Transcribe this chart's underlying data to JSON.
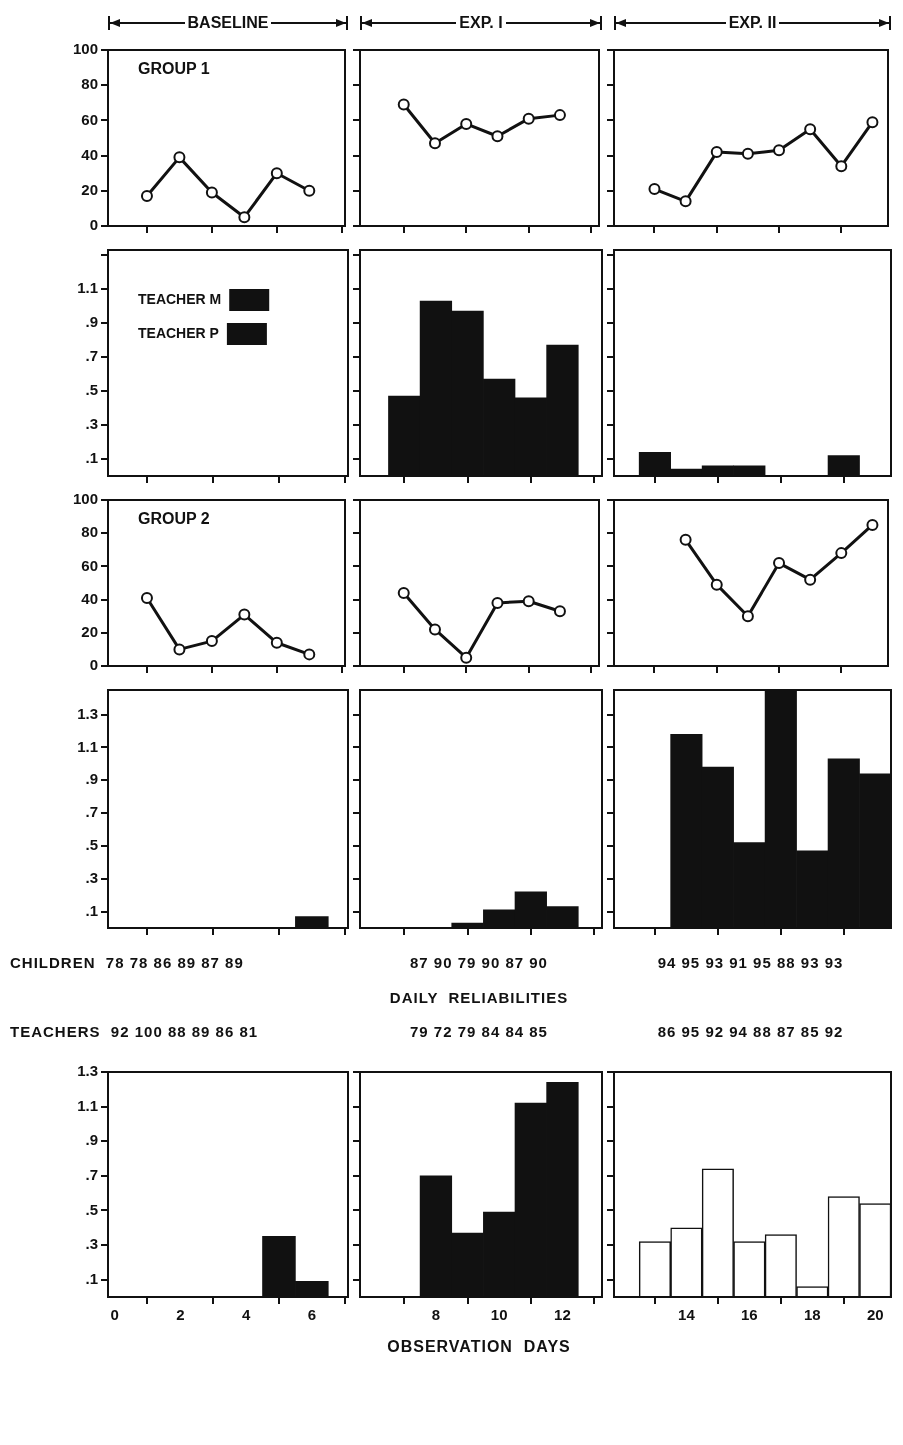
{
  "chart_data": [
    {
      "type": "line",
      "title": "BASELINE",
      "annotations": [
        "GROUP 1"
      ],
      "x": [
        1,
        2,
        3,
        4,
        5,
        6
      ],
      "values": [
        17,
        39,
        19,
        5,
        30,
        20
      ],
      "color": "#111111",
      "marker": "circle",
      "xlim": [
        -0.2,
        7.1
      ],
      "xticks": [
        {
          "value": 0,
          "label": null
        },
        {
          "value": 2,
          "label": null
        },
        {
          "value": 4,
          "label": null
        },
        {
          "value": 6,
          "label": null
        }
      ],
      "ylim": [
        0,
        100
      ],
      "yticks": [
        0,
        20,
        40,
        60,
        80,
        100
      ],
      "tick_labels": "y"
    },
    {
      "type": "line",
      "title": "EXP. I",
      "x": [
        7,
        8,
        9,
        10,
        11,
        12
      ],
      "values": [
        69,
        47,
        58,
        51,
        61,
        63
      ],
      "color": "#111111",
      "marker": "circle",
      "xlim": [
        5.6,
        13.25
      ],
      "xticks": [
        {
          "value": 8,
          "label": null
        },
        {
          "value": 10,
          "label": null
        },
        {
          "value": 12,
          "label": null
        }
      ],
      "ylim": [
        0,
        100
      ],
      "yticks": [
        {
          "value": 0,
          "label": null
        },
        {
          "value": 20,
          "label": null
        },
        {
          "value": 40,
          "label": null
        },
        {
          "value": 60,
          "label": null
        },
        {
          "value": 80,
          "label": null
        },
        {
          "value": 100,
          "label": null
        }
      ],
      "tick_labels": false
    },
    {
      "type": "line",
      "title": "EXP. II",
      "x": [
        13,
        14,
        15,
        16,
        17,
        18,
        19,
        20
      ],
      "values": [
        21,
        14,
        42,
        41,
        43,
        55,
        34,
        59
      ],
      "color": "#111111",
      "marker": "circle",
      "xlim": [
        11.7,
        20.5
      ],
      "xticks": [
        {
          "value": 14,
          "label": null
        },
        {
          "value": 16,
          "label": null
        },
        {
          "value": 18,
          "label": null
        },
        {
          "value": 20,
          "label": null
        }
      ],
      "ylim": [
        0,
        100
      ],
      "yticks": [
        {
          "value": 0,
          "label": null
        },
        {
          "value": 20,
          "label": null
        },
        {
          "value": 40,
          "label": null
        },
        {
          "value": 60,
          "label": null
        },
        {
          "value": 80,
          "label": null
        },
        {
          "value": 100,
          "label": null
        }
      ],
      "tick_labels": false
    },
    {
      "type": "bar",
      "x": [
        1,
        2,
        3,
        4,
        5,
        6
      ],
      "series": [
        {
          "name": "TEACHER M",
          "color": "#111111",
          "values": [
            0,
            0,
            0,
            0,
            0,
            0
          ]
        },
        {
          "name": "TEACHER P",
          "color": "#111111",
          "values": [
            0,
            0,
            0,
            0,
            0,
            0
          ]
        }
      ],
      "legend": "top left",
      "xlim": [
        -0.2,
        7.1
      ],
      "xticks": [
        {
          "value": 0,
          "label": null
        },
        {
          "value": 2,
          "label": null
        },
        {
          "value": 4,
          "label": null
        },
        {
          "value": 6,
          "label": null
        }
      ],
      "ylim": [
        0,
        1.33
      ],
      "yticks": [
        {
          "value": 0.1,
          "label": ".1"
        },
        {
          "value": 0.3,
          "label": ".3"
        },
        {
          "value": 0.5,
          "label": ".5"
        },
        {
          "value": 0.7,
          "label": ".7"
        },
        {
          "value": 0.9,
          "label": ".9"
        },
        {
          "value": 1.1,
          "label": "1.1"
        },
        {
          "value": 1.3,
          "label": null
        }
      ],
      "tick_labels": "y"
    },
    {
      "type": "bar",
      "x": [
        7,
        8,
        9,
        10,
        11,
        12
      ],
      "values": [
        0.47,
        1.03,
        0.97,
        0.57,
        0.46,
        0.77
      ],
      "color": "#111111",
      "xlim": [
        5.6,
        13.25
      ],
      "xticks": [
        {
          "value": 8,
          "label": null
        },
        {
          "value": 10,
          "label": null
        },
        {
          "value": 12,
          "label": null
        }
      ],
      "ylim": [
        0,
        1.33
      ],
      "yticks": [
        {
          "value": 0.1,
          "label": null
        },
        {
          "value": 0.3,
          "label": null
        },
        {
          "value": 0.5,
          "label": null
        },
        {
          "value": 0.7,
          "label": null
        },
        {
          "value": 0.9,
          "label": null
        },
        {
          "value": 1.1,
          "label": null
        },
        {
          "value": 1.3,
          "label": null
        }
      ],
      "tick_labels": false
    },
    {
      "type": "bar",
      "x": [
        13,
        14,
        15,
        16,
        17,
        18,
        19,
        20
      ],
      "values": [
        0.14,
        0.04,
        0.06,
        0.06,
        0,
        0,
        0.12,
        0
      ],
      "color": "#111111",
      "xlim": [
        11.7,
        20.5
      ],
      "xticks": [
        {
          "value": 14,
          "label": null
        },
        {
          "value": 16,
          "label": null
        },
        {
          "value": 18,
          "label": null
        },
        {
          "value": 20,
          "label": null
        }
      ],
      "ylim": [
        0,
        1.33
      ],
      "yticks": [
        {
          "value": 0.1,
          "label": null
        },
        {
          "value": 0.3,
          "label": null
        },
        {
          "value": 0.5,
          "label": null
        },
        {
          "value": 0.7,
          "label": null
        },
        {
          "value": 0.9,
          "label": null
        },
        {
          "value": 1.1,
          "label": null
        },
        {
          "value": 1.3,
          "label": null
        }
      ],
      "tick_labels": false
    },
    {
      "type": "line",
      "annotations": [
        "GROUP 2"
      ],
      "x": [
        1,
        2,
        3,
        4,
        5,
        6
      ],
      "values": [
        41,
        10,
        15,
        31,
        14,
        7
      ],
      "color": "#111111",
      "marker": "circle",
      "xlim": [
        -0.2,
        7.1
      ],
      "xticks": [
        {
          "value": 0,
          "label": null
        },
        {
          "value": 2,
          "label": null
        },
        {
          "value": 4,
          "label": null
        },
        {
          "value": 6,
          "label": null
        }
      ],
      "ylim": [
        0,
        100
      ],
      "yticks": [
        0,
        20,
        40,
        60,
        80,
        100
      ],
      "tick_labels": "y"
    },
    {
      "type": "line",
      "x": [
        7,
        8,
        9,
        10,
        11,
        12
      ],
      "values": [
        44,
        22,
        5,
        38,
        39,
        33
      ],
      "color": "#111111",
      "marker": "circle",
      "xlim": [
        5.6,
        13.25
      ],
      "xticks": [
        {
          "value": 8,
          "label": null
        },
        {
          "value": 10,
          "label": null
        },
        {
          "value": 12,
          "label": null
        }
      ],
      "ylim": [
        0,
        100
      ],
      "yticks": [
        {
          "value": 0,
          "label": null
        },
        {
          "value": 20,
          "label": null
        },
        {
          "value": 40,
          "label": null
        },
        {
          "value": 60,
          "label": null
        },
        {
          "value": 80,
          "label": null
        },
        {
          "value": 100,
          "label": null
        }
      ],
      "tick_labels": false
    },
    {
      "type": "line",
      "x": [
        14,
        15,
        16,
        17,
        18,
        19,
        20
      ],
      "values": [
        76,
        49,
        30,
        62,
        52,
        68,
        85
      ],
      "color": "#111111",
      "marker": "circle",
      "xlim": [
        11.7,
        20.5
      ],
      "xticks": [
        {
          "value": 14,
          "label": null
        },
        {
          "value": 16,
          "label": null
        },
        {
          "value": 18,
          "label": null
        },
        {
          "value": 20,
          "label": null
        }
      ],
      "ylim": [
        0,
        100
      ],
      "yticks": [
        {
          "value": 0,
          "label": null
        },
        {
          "value": 20,
          "label": null
        },
        {
          "value": 40,
          "label": null
        },
        {
          "value": 60,
          "label": null
        },
        {
          "value": 80,
          "label": null
        },
        {
          "value": 100,
          "label": null
        }
      ],
      "tick_labels": false
    },
    {
      "type": "bar",
      "annotations": [
        "CHILDREN  78 78 86 89 87 89",
        "TEACHERS  92 100 88 89 86 81"
      ],
      "x": [
        1,
        2,
        3,
        4,
        5,
        6
      ],
      "values": [
        0,
        0,
        0,
        0,
        0,
        0.07
      ],
      "color": "#111111",
      "xlim": [
        -0.2,
        7.1
      ],
      "xticks": [
        {
          "value": 0,
          "label": null
        },
        {
          "value": 2,
          "label": null
        },
        {
          "value": 4,
          "label": null
        },
        {
          "value": 6,
          "label": null
        }
      ],
      "ylim": [
        0,
        1.45
      ],
      "yticks": [
        {
          "value": 0.1,
          "label": ".1"
        },
        {
          "value": 0.3,
          "label": ".3"
        },
        {
          "value": 0.5,
          "label": ".5"
        },
        {
          "value": 0.7,
          "label": ".7"
        },
        {
          "value": 0.9,
          "label": ".9"
        },
        {
          "value": 1.1,
          "label": "1.1"
        },
        {
          "value": 1.3,
          "label": "1.3"
        }
      ],
      "tick_labels": "y"
    },
    {
      "type": "bar",
      "annotations": [
        "87 90 79 90 87 90",
        "DAILY  RELIABILITIES",
        "79 72 79 84 84 85"
      ],
      "x": [
        7,
        8,
        9,
        10,
        11,
        12
      ],
      "values": [
        0,
        0,
        0.03,
        0.11,
        0.22,
        0.13
      ],
      "color": "#111111",
      "xlim": [
        5.6,
        13.25
      ],
      "xticks": [
        {
          "value": 8,
          "label": null
        },
        {
          "value": 10,
          "label": null
        },
        {
          "value": 12,
          "label": null
        }
      ],
      "ylim": [
        0,
        1.45
      ],
      "yticks": [
        {
          "value": 0.1,
          "label": null
        },
        {
          "value": 0.3,
          "label": null
        },
        {
          "value": 0.5,
          "label": null
        },
        {
          "value": 0.7,
          "label": null
        },
        {
          "value": 0.9,
          "label": null
        },
        {
          "value": 1.1,
          "label": null
        },
        {
          "value": 1.3,
          "label": null
        }
      ],
      "tick_labels": false
    },
    {
      "type": "bar",
      "annotations": [
        "94 95 93 91 95 88 93 93",
        "86 95 92 94 88 87 85 92"
      ],
      "x": [
        13,
        14,
        15,
        16,
        17,
        18,
        19,
        20
      ],
      "values": [
        0,
        1.18,
        0.98,
        0.52,
        1.45,
        0.47,
        1.03,
        0.94
      ],
      "color": "#111111",
      "xlim": [
        11.7,
        20.5
      ],
      "xticks": [
        {
          "value": 14,
          "label": null
        },
        {
          "value": 16,
          "label": null
        },
        {
          "value": 18,
          "label": null
        },
        {
          "value": 20,
          "label": null
        }
      ],
      "ylim": [
        0,
        1.45
      ],
      "yticks": [
        {
          "value": 0.1,
          "label": null
        },
        {
          "value": 0.3,
          "label": null
        },
        {
          "value": 0.5,
          "label": null
        },
        {
          "value": 0.7,
          "label": null
        },
        {
          "value": 0.9,
          "label": null
        },
        {
          "value": 1.1,
          "label": null
        },
        {
          "value": 1.3,
          "label": null
        }
      ],
      "tick_labels": false
    },
    {
      "type": "bar",
      "x": [
        1,
        2,
        3,
        4,
        5,
        6
      ],
      "values": [
        0,
        0,
        0,
        0,
        0.35,
        0.09
      ],
      "color": "#111111",
      "xlim": [
        -0.2,
        7.1
      ],
      "xticks": [
        0,
        2,
        4,
        6
      ],
      "ylim": [
        0,
        1.3
      ],
      "yticks": [
        {
          "value": 0.1,
          "label": ".1"
        },
        {
          "value": 0.3,
          "label": ".3"
        },
        {
          "value": 0.5,
          "label": ".5"
        },
        {
          "value": 0.7,
          "label": ".7"
        },
        {
          "value": 0.9,
          "label": ".9"
        },
        {
          "value": 1.1,
          "label": "1.1"
        },
        {
          "value": 1.3,
          "label": "1.3"
        }
      ]
    },
    {
      "type": "bar",
      "xlabel": "OBSERVATION  DAYS",
      "x": [
        7,
        8,
        9,
        10,
        11,
        12
      ],
      "values": [
        0,
        0.7,
        0.37,
        0.49,
        1.12,
        1.24
      ],
      "color": "#111111",
      "xlim": [
        5.6,
        13.25
      ],
      "xticks": [
        8,
        10,
        12
      ],
      "ylim": [
        0,
        1.3
      ],
      "yticks": [
        {
          "value": 0.1,
          "label": null
        },
        {
          "value": 0.3,
          "label": null
        },
        {
          "value": 0.5,
          "label": null
        },
        {
          "value": 0.7,
          "label": null
        },
        {
          "value": 0.9,
          "label": null
        },
        {
          "value": 1.1,
          "label": null
        },
        {
          "value": 1.3,
          "label": null
        }
      ],
      "tick_labels": "x"
    },
    {
      "type": "bar",
      "x": [
        13,
        14,
        15,
        16,
        17,
        18,
        19,
        20
      ],
      "values": [
        0.32,
        0.4,
        0.74,
        0.32,
        0.36,
        0.06,
        0.58,
        0.54
      ],
      "color": "#ffffff",
      "xlim": [
        11.7,
        20.5
      ],
      "xticks": [
        14,
        16,
        18,
        20
      ],
      "ylim": [
        0,
        1.3
      ],
      "yticks": [
        {
          "value": 0.1,
          "label": null
        },
        {
          "value": 0.3,
          "label": null
        },
        {
          "value": 0.5,
          "label": null
        },
        {
          "value": 0.7,
          "label": null
        },
        {
          "value": 0.9,
          "label": null
        },
        {
          "value": 1.1,
          "label": null
        },
        {
          "value": 1.3,
          "label": null
        }
      ],
      "tick_labels": "x"
    }
  ]
}
